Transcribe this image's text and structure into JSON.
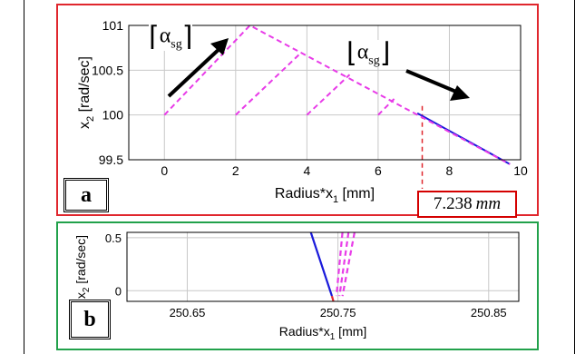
{
  "figure": {
    "panel_a": {
      "label": "a",
      "callout_value": "7.238",
      "callout_unit": "mm",
      "annotations": [
        {
          "symbol": "α",
          "subscript": "sg",
          "arrow": "up-right"
        },
        {
          "symbol": "α",
          "subscript": "sg",
          "arrow": "down-right"
        }
      ],
      "border_color": "#e0262d"
    },
    "panel_b": {
      "label": "b",
      "border_color": "#22a14b"
    }
  },
  "chart_data": [
    {
      "type": "line",
      "xlabel": "Radius*x",
      "xlabel_sub": "1",
      "xlabel_unit": " [mm]",
      "ylabel": "x",
      "ylabel_sub": "2",
      "ylabel_unit": " [rad/sec]",
      "xlim": [
        -1,
        10
      ],
      "ylim": [
        99.5,
        101
      ],
      "xticks": [
        "0",
        "2",
        "4",
        "6",
        "8",
        "10"
      ],
      "xtick_values": [
        0,
        2,
        4,
        6,
        8,
        10
      ],
      "yticks": [
        "99.5",
        "100",
        "100.5",
        "101"
      ],
      "ytick_values": [
        99.5,
        100,
        100.5,
        101
      ],
      "grid": true,
      "marker_line": {
        "x": 7.238,
        "color": "#e0262d",
        "style": "dashed"
      },
      "series": [
        {
          "style": "solid",
          "color": "#1a1adb",
          "x": [
            7.1,
            9.7
          ],
          "y": [
            100.02,
            99.45
          ]
        },
        {
          "style": "dashed",
          "color": "#e83be8",
          "x": [
            0,
            2.4,
            9.7
          ],
          "y": [
            100,
            101,
            99.45
          ]
        },
        {
          "style": "dashed",
          "color": "#e83be8",
          "x": [
            2,
            3.85
          ],
          "y": [
            100,
            100.7
          ]
        },
        {
          "style": "dashed",
          "color": "#e83be8",
          "x": [
            4,
            5.2
          ],
          "y": [
            100,
            100.45
          ]
        },
        {
          "style": "dashed",
          "color": "#e83be8",
          "x": [
            6,
            6.45
          ],
          "y": [
            100,
            100.18
          ]
        }
      ]
    },
    {
      "type": "line",
      "xlabel": "Radius*x",
      "xlabel_sub": "1",
      "xlabel_unit": " [mm]",
      "ylabel": "x",
      "ylabel_sub": "2",
      "ylabel_unit": " [rad/sec]",
      "xlim": [
        250.61,
        250.87
      ],
      "ylim": [
        -0.1,
        0.55
      ],
      "xticks": [
        "250.65",
        "250.75",
        "250.85"
      ],
      "xtick_values": [
        250.65,
        250.75,
        250.85
      ],
      "yticks": [
        "0",
        "0.5"
      ],
      "ytick_values": [
        0,
        0.5
      ],
      "grid": true,
      "series": [
        {
          "style": "solid",
          "color": "#1a1adb",
          "x": [
            250.732,
            250.746
          ],
          "y": [
            0.55,
            -0.05
          ]
        },
        {
          "style": "dashed",
          "color": "#e83be8",
          "x": [
            250.753,
            250.749
          ],
          "y": [
            0.55,
            -0.05
          ]
        },
        {
          "style": "dashed",
          "color": "#e83be8",
          "x": [
            250.757,
            250.751
          ],
          "y": [
            0.55,
            -0.05
          ]
        },
        {
          "style": "dashed",
          "color": "#e83be8",
          "x": [
            250.761,
            250.753
          ],
          "y": [
            0.55,
            -0.05
          ]
        },
        {
          "style": "solid",
          "color": "#e0262d",
          "x": [
            250.746,
            250.747
          ],
          "y": [
            -0.05,
            -0.1
          ]
        }
      ]
    }
  ]
}
